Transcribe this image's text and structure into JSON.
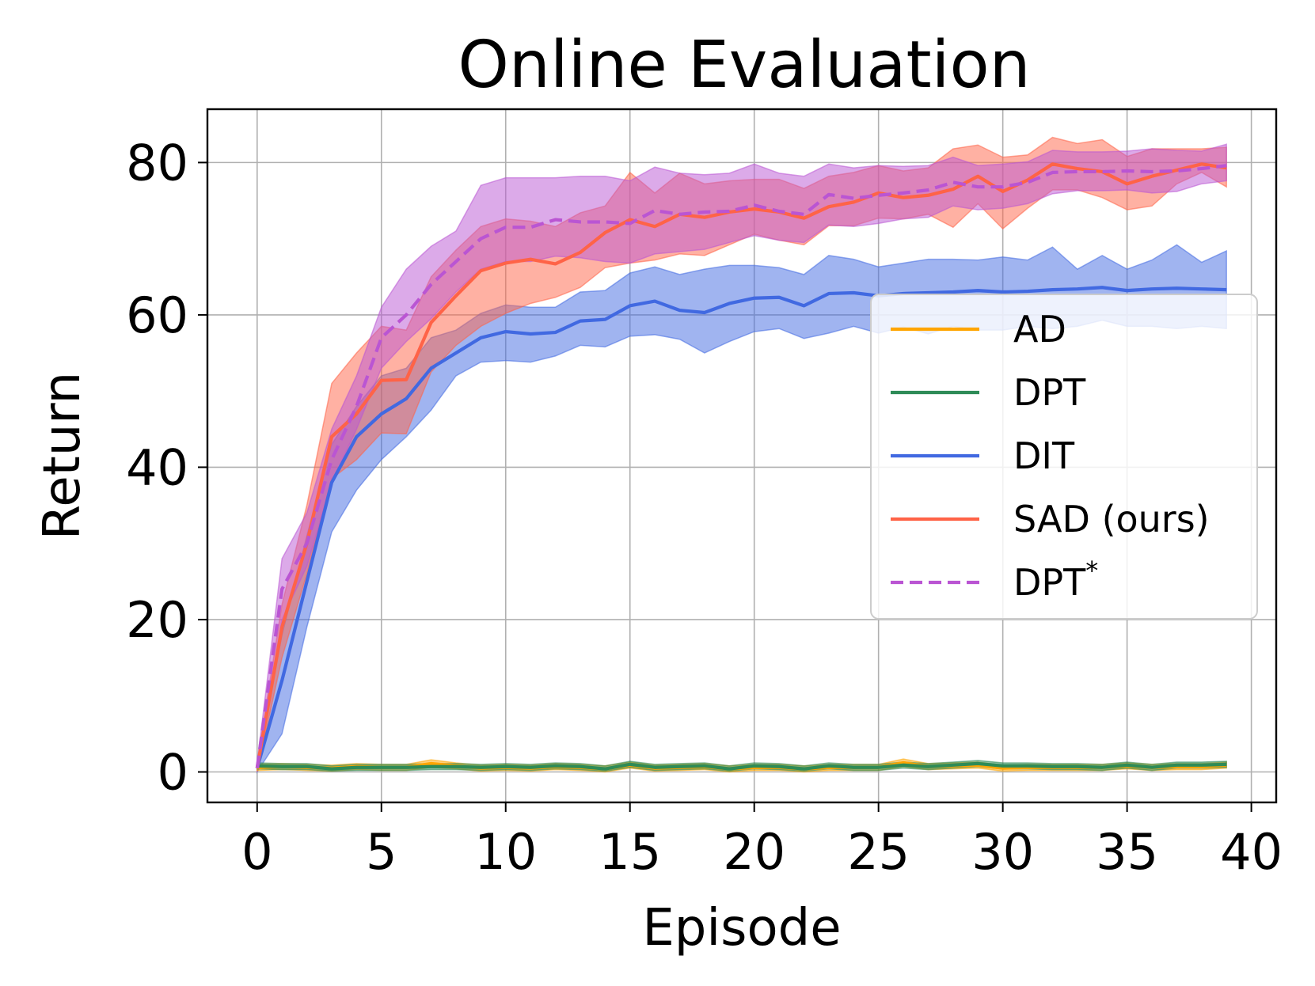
{
  "chart_data": {
    "type": "line",
    "title": "Online Evaluation",
    "xlabel": "Episode",
    "ylabel": "Return",
    "xlim": [
      -2,
      41
    ],
    "ylim": [
      -4,
      87
    ],
    "xticks": [
      0,
      5,
      10,
      15,
      20,
      25,
      30,
      35,
      40
    ],
    "yticks": [
      0,
      20,
      40,
      60,
      80
    ],
    "grid": true,
    "legend_position": "center-right",
    "x": [
      0,
      1,
      2,
      3,
      4,
      5,
      6,
      7,
      8,
      9,
      10,
      11,
      12,
      13,
      14,
      15,
      16,
      17,
      18,
      19,
      20,
      21,
      22,
      23,
      24,
      25,
      26,
      27,
      28,
      29,
      30,
      31,
      32,
      33,
      34,
      35,
      36,
      37,
      38,
      39
    ],
    "series": [
      {
        "name": "AD",
        "legend_label": "AD",
        "color": "#ffa500",
        "dash": "solid",
        "values": [
          0.6,
          0.7,
          0.6,
          0.5,
          0.7,
          0.6,
          0.6,
          1.1,
          0.8,
          0.5,
          0.6,
          0.5,
          0.7,
          0.6,
          0.4,
          0.9,
          0.5,
          0.6,
          0.7,
          0.4,
          0.6,
          0.6,
          0.4,
          0.6,
          0.6,
          0.6,
          1.2,
          0.7,
          0.8,
          0.9,
          0.5,
          0.6,
          0.6,
          0.6,
          0.6,
          0.8,
          0.6,
          0.7,
          0.7,
          0.9
        ],
        "lower": [
          0.2,
          0.3,
          0.2,
          0.1,
          0.3,
          0.2,
          0.2,
          0.6,
          0.4,
          0.1,
          0.2,
          0.1,
          0.3,
          0.2,
          0.0,
          0.5,
          0.1,
          0.2,
          0.3,
          0.0,
          0.2,
          0.2,
          0.0,
          0.2,
          0.2,
          0.2,
          0.7,
          0.3,
          0.4,
          0.5,
          0.1,
          0.2,
          0.2,
          0.2,
          0.2,
          0.4,
          0.2,
          0.3,
          0.3,
          0.5
        ],
        "upper": [
          1.0,
          1.1,
          1.0,
          0.9,
          1.1,
          1.0,
          1.0,
          1.6,
          1.2,
          0.9,
          1.0,
          0.9,
          1.1,
          1.0,
          0.8,
          1.3,
          0.9,
          1.0,
          1.1,
          0.8,
          1.0,
          1.0,
          0.8,
          1.0,
          1.0,
          1.0,
          1.7,
          1.1,
          1.2,
          1.3,
          0.9,
          1.0,
          1.0,
          1.0,
          1.0,
          1.2,
          1.0,
          1.1,
          1.1,
          1.3
        ]
      },
      {
        "name": "DPT",
        "legend_label": "DPT",
        "color": "#2e8b57",
        "dash": "solid",
        "values": [
          0.8,
          0.7,
          0.7,
          0.4,
          0.6,
          0.6,
          0.6,
          0.7,
          0.7,
          0.6,
          0.7,
          0.6,
          0.8,
          0.7,
          0.4,
          1.0,
          0.6,
          0.7,
          0.8,
          0.4,
          0.8,
          0.7,
          0.4,
          0.8,
          0.6,
          0.6,
          0.9,
          0.7,
          0.9,
          1.1,
          0.8,
          0.8,
          0.7,
          0.7,
          0.6,
          0.9,
          0.6,
          0.9,
          0.9,
          1.0
        ],
        "lower": [
          0.4,
          0.3,
          0.3,
          0.1,
          0.2,
          0.2,
          0.2,
          0.3,
          0.3,
          0.2,
          0.3,
          0.2,
          0.4,
          0.3,
          0.1,
          0.6,
          0.2,
          0.3,
          0.4,
          0.1,
          0.4,
          0.3,
          0.1,
          0.4,
          0.2,
          0.2,
          0.5,
          0.3,
          0.5,
          0.7,
          0.4,
          0.4,
          0.3,
          0.3,
          0.2,
          0.5,
          0.2,
          0.5,
          0.5,
          0.6
        ],
        "upper": [
          1.2,
          1.1,
          1.1,
          0.8,
          1.0,
          1.0,
          1.0,
          1.1,
          1.1,
          1.0,
          1.1,
          1.0,
          1.2,
          1.1,
          0.8,
          1.4,
          1.0,
          1.1,
          1.2,
          0.8,
          1.2,
          1.1,
          0.8,
          1.2,
          1.0,
          1.0,
          1.3,
          1.1,
          1.3,
          1.5,
          1.2,
          1.2,
          1.1,
          1.1,
          1.0,
          1.3,
          1.0,
          1.3,
          1.3,
          1.4
        ]
      },
      {
        "name": "DIT",
        "legend_label": "DIT",
        "color": "#4169e1",
        "dash": "solid",
        "values": [
          0.5,
          12,
          25,
          38,
          44,
          47,
          49,
          53,
          55,
          57,
          57.8,
          57.5,
          57.7,
          59.2,
          59.4,
          61.2,
          61.8,
          60.6,
          60.3,
          61.5,
          62.2,
          62.3,
          61.2,
          62.8,
          62.9,
          62.5,
          62.8,
          62.9,
          63.0,
          63.2,
          63.0,
          63.1,
          63.3,
          63.4,
          63.6,
          63.2,
          63.4,
          63.5,
          63.4,
          63.3
        ],
        "lower": [
          0,
          5,
          19,
          31.5,
          37,
          41,
          44,
          47.5,
          52,
          53.8,
          54,
          53.8,
          54.6,
          56,
          55.8,
          57.2,
          57.4,
          56.8,
          55,
          56.5,
          57.8,
          58.2,
          56.9,
          57.6,
          58.5,
          57.6,
          58.4,
          57.5,
          58.5,
          58,
          58,
          58.5,
          58.2,
          58.5,
          59.3,
          58.5,
          58.5,
          58.2,
          58.5,
          58.2
        ],
        "upper": [
          1.2,
          18,
          31,
          43,
          48,
          52,
          53,
          57,
          58,
          60.2,
          61.3,
          61,
          61,
          63,
          63.2,
          65.5,
          66.3,
          65.3,
          66,
          66.5,
          66.5,
          66.2,
          65.3,
          67.8,
          67.3,
          66.3,
          66.8,
          67.3,
          67.3,
          67.2,
          67.6,
          67.2,
          68.9,
          66,
          67.8,
          66,
          67.2,
          69.2,
          66.9,
          68.4
        ]
      },
      {
        "name": "SAD (ours)",
        "legend_label": "SAD (ours)",
        "color": "#ff6347",
        "dash": "solid",
        "values": [
          0.5,
          19,
          30,
          44,
          47,
          51.4,
          51.5,
          59,
          62.5,
          65.8,
          66.8,
          67.3,
          66.7,
          68.2,
          70.8,
          72.5,
          71.6,
          73.2,
          72.8,
          73.5,
          73.9,
          73.5,
          72.7,
          74.2,
          74.8,
          76,
          75.4,
          75.7,
          76.5,
          78.2,
          76.2,
          77.7,
          79.8,
          79.2,
          78.8,
          77.2,
          78.2,
          79,
          79.8,
          79.3
        ],
        "lower": [
          0,
          15,
          26,
          38.5,
          41,
          44.5,
          44.4,
          52.5,
          56,
          58.5,
          60.2,
          61.5,
          62.3,
          63.6,
          66.2,
          66.8,
          67.2,
          68,
          67.8,
          69.2,
          70.6,
          69.8,
          69.2,
          71.7,
          71.7,
          72.7,
          72.6,
          73.2,
          71.5,
          74.6,
          71.3,
          74,
          76.4,
          76.4,
          75.4,
          73.8,
          74.3,
          77.2,
          78.7,
          76.8
        ],
        "upper": [
          1.2,
          22,
          35,
          51,
          55,
          58.5,
          58,
          65,
          68.5,
          71.6,
          72.6,
          72.3,
          71.6,
          73.4,
          74.3,
          78.7,
          76,
          78.6,
          77.2,
          77.6,
          77.8,
          77.8,
          76.6,
          78.2,
          78.7,
          79.6,
          78.9,
          79.3,
          81.8,
          82.3,
          80.7,
          81,
          83.3,
          82.5,
          83,
          80.8,
          81.8,
          81.8,
          81.8,
          82
        ]
      },
      {
        "name": "DPT*",
        "legend_label": "DPT",
        "legend_superscript": "*",
        "color": "#ba55d3",
        "dash": "dashed",
        "values": [
          0.5,
          24,
          30,
          41,
          48,
          57,
          60,
          64,
          67,
          70,
          71.5,
          71.5,
          72.5,
          72.2,
          72.2,
          72,
          73.7,
          73.2,
          73.5,
          73.6,
          74.4,
          73.6,
          73.2,
          75.8,
          75.3,
          75.7,
          76,
          76.4,
          77.4,
          76.8,
          76.8,
          77.4,
          78.7,
          78.8,
          78.8,
          78.9,
          78.8,
          78.9,
          79.2,
          79.6
        ],
        "lower": [
          0,
          20,
          27,
          38,
          45,
          53,
          56.5,
          59.5,
          63,
          66,
          67,
          67,
          67.7,
          67.5,
          67,
          66.8,
          68,
          68.3,
          68.6,
          69.5,
          70.4,
          69.8,
          69.5,
          71.8,
          71.6,
          72,
          72.6,
          72.8,
          74.3,
          73.8,
          74,
          74.6,
          75.9,
          76.3,
          76.3,
          76.4,
          76,
          76.2,
          77.2,
          77.6
        ],
        "upper": [
          1.2,
          28,
          34,
          45,
          52,
          61,
          66,
          69,
          71,
          77,
          78,
          78,
          78,
          78.2,
          78.2,
          77.6,
          79.4,
          78.6,
          78.4,
          78.6,
          79.8,
          78.6,
          78.2,
          79.8,
          79.3,
          79.6,
          79.5,
          79.6,
          80.7,
          79.6,
          79.8,
          80.1,
          81.6,
          81.4,
          81.4,
          81.5,
          81.8,
          81.6,
          81.5,
          82.4
        ]
      }
    ]
  }
}
